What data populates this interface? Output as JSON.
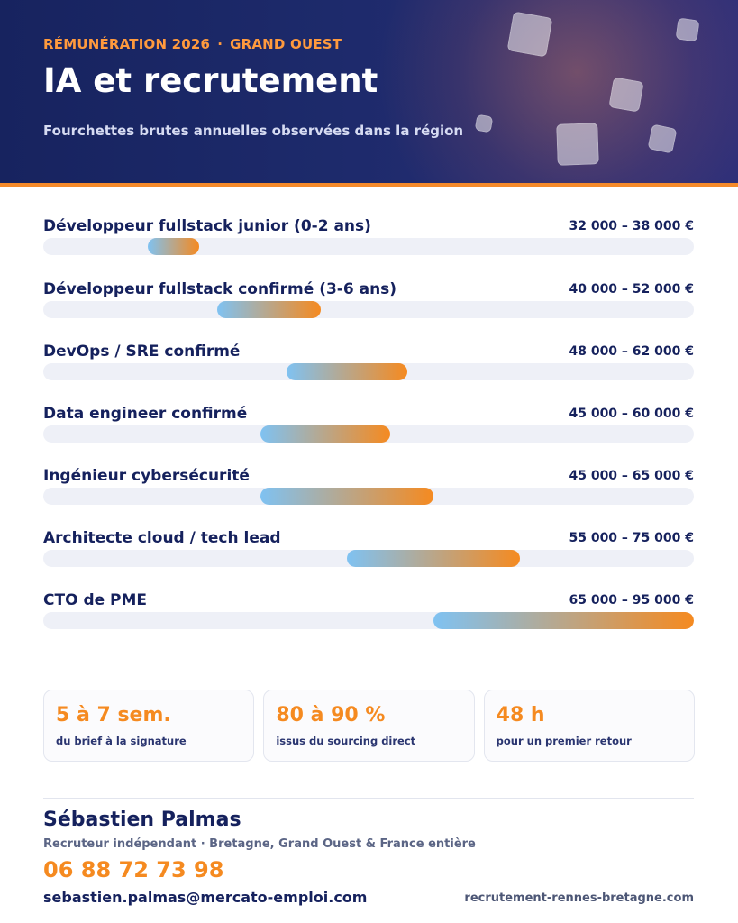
{
  "header": {
    "eyebrow_left": "RÉMUNÉRATION 2026",
    "eyebrow_sep": "·",
    "eyebrow_right": "GRAND OUEST",
    "title": "IA et recrutement",
    "subtitle": "Fourchettes brutes annuelles observées dans la région"
  },
  "salaries": [
    {
      "label": "Développeur fullstack junior (0-2 ans)",
      "range": "32 000 – 38 000 €",
      "min": 32000,
      "max": 38000
    },
    {
      "label": "Développeur fullstack confirmé (3-6 ans)",
      "range": "40 000 – 52 000 €",
      "min": 40000,
      "max": 52000
    },
    {
      "label": "DevOps / SRE confirmé",
      "range": "48 000 – 62 000 €",
      "min": 48000,
      "max": 62000
    },
    {
      "label": "Data engineer confirmé",
      "range": "45 000 – 60 000 €",
      "min": 45000,
      "max": 60000
    },
    {
      "label": "Ingénieur cybersécurité",
      "range": "45 000 – 65 000 €",
      "min": 45000,
      "max": 65000
    },
    {
      "label": "Architecte cloud / tech lead",
      "range": "55 000 – 75 000 €",
      "min": 55000,
      "max": 75000
    },
    {
      "label": "CTO de PME",
      "range": "65 000 – 95 000 €",
      "min": 65000,
      "max": 95000
    }
  ],
  "scale": {
    "min": 20000,
    "max": 95000
  },
  "stats": [
    {
      "value": "5 à 7 sem.",
      "label": "du brief à la signature"
    },
    {
      "value": "80 à 90 %",
      "label": "issus du sourcing direct"
    },
    {
      "value": "48 h",
      "label": "pour un premier retour"
    }
  ],
  "contact": {
    "name": "Sébastien Palmas",
    "role": "Recruteur indépendant · Bretagne, Grand Ouest & France entière",
    "phone": "06 88 72 73 98",
    "email": "sebastien.palmas@mercato-emploi.com",
    "website": "recrutement-rennes-bretagne.com"
  },
  "colors": {
    "navy": "#15215d",
    "accent_orange": "#f58a20",
    "bar_start": "#7fc2f2",
    "bar_end": "#f58a20",
    "track": "#eef0f7"
  }
}
